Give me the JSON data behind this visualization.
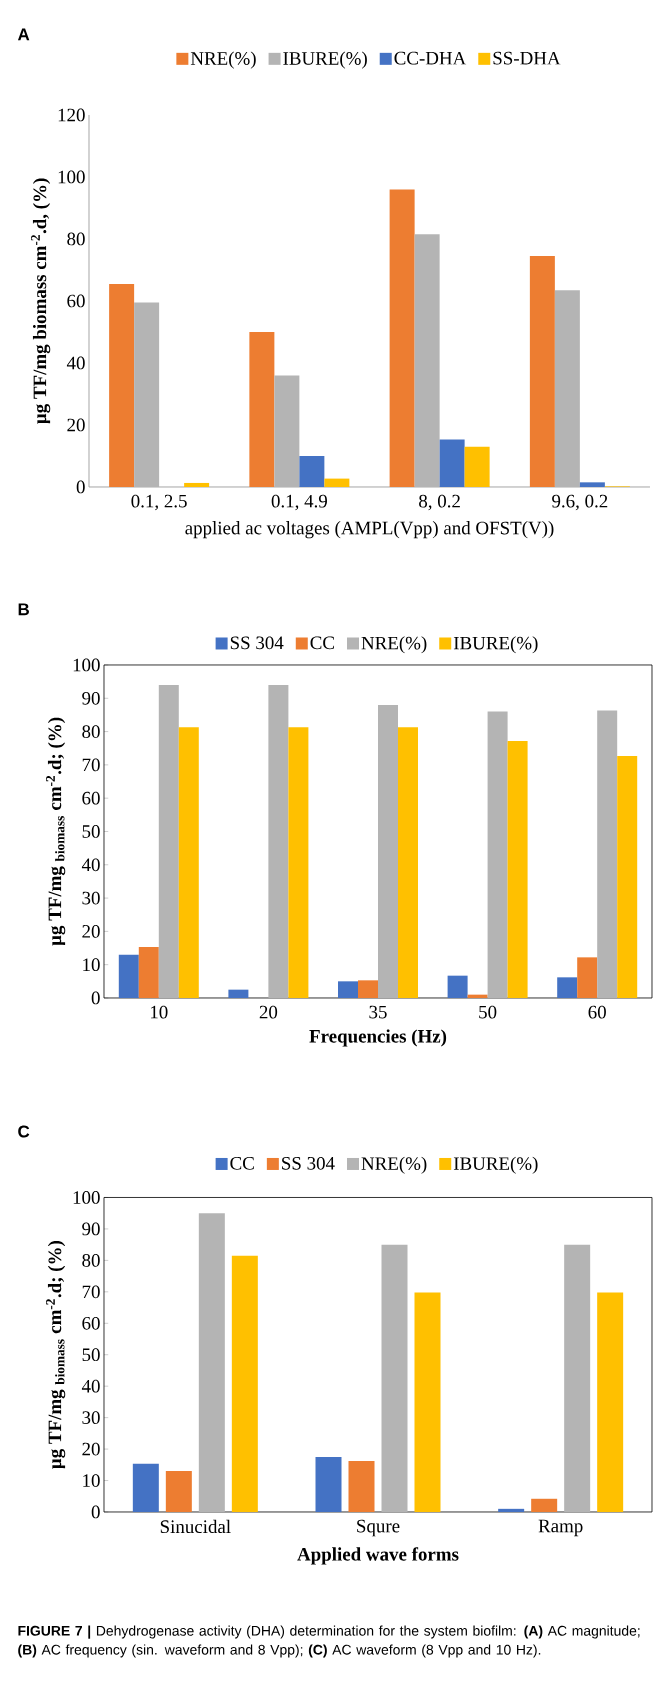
{
  "chart_data": [
    {
      "type": "bar",
      "title": "A",
      "xlabel": "applied ac voltages (AMPL(Vpp) and OFST(V))",
      "ylabel": "µg TF/mg biomass cm$^{-2}$.d, (%)",
      "categories": [
        "0.1, 2.5",
        "0.1, 4.9",
        "8, 0.2",
        "9.6, 0.2"
      ],
      "series": [
        {
          "name": "NRE(%)",
          "color": "#ed7d31",
          "values": [
            65.5,
            50,
            96,
            74.5
          ]
        },
        {
          "name": "IBURE(%)",
          "color": "#b4b4b4",
          "values": [
            59.5,
            36,
            81.5,
            63.5
          ]
        },
        {
          "name": "CC-DHA",
          "color": "#4472c4",
          "values": [
            0,
            10,
            15.3,
            1.5
          ]
        },
        {
          "name": "SS-DHA",
          "color": "#ffc000",
          "values": [
            1.3,
            2.7,
            13,
            0.2
          ]
        }
      ],
      "ylim": [
        0,
        120
      ],
      "yticks": [
        0,
        20,
        40,
        60,
        80,
        100,
        120
      ],
      "legend": "top"
    },
    {
      "type": "bar",
      "title": "B",
      "xlabel": "Frequencies (Hz)",
      "ylabel": "µg TF/mg $_{biomass}$ cm$^{-2}$.d; (%)",
      "categories": [
        "10",
        "20",
        "35",
        "50",
        "60"
      ],
      "series": [
        {
          "name": "SS 304",
          "color": "#4472c4",
          "values": [
            13,
            2.5,
            5,
            6.7,
            6.2
          ]
        },
        {
          "name": "CC",
          "color": "#ed7d31",
          "values": [
            15.3,
            0,
            5.3,
            1,
            12.2
          ]
        },
        {
          "name": "NRE(%)",
          "color": "#b4b4b4",
          "values": [
            94,
            94,
            88,
            86,
            86.3
          ]
        },
        {
          "name": "IBURE(%)",
          "color": "#ffc000",
          "values": [
            81.3,
            81.3,
            81.3,
            77.2,
            72.7
          ]
        }
      ],
      "ylim": [
        0,
        100
      ],
      "yticks": [
        0,
        10,
        20,
        30,
        40,
        50,
        60,
        70,
        80,
        90,
        100
      ],
      "legend": "top"
    },
    {
      "type": "bar",
      "title": "C",
      "xlabel": "Applied wave forms",
      "ylabel": "µg TF/mg $_{biomass}$ cm$^{-2}$.d; (%)",
      "categories": [
        "Sinucidal",
        "Squre",
        "Ramp"
      ],
      "series": [
        {
          "name": "CC",
          "color": "#4472c4",
          "values": [
            15.3,
            17.5,
            1
          ]
        },
        {
          "name": "SS 304",
          "color": "#ed7d31",
          "values": [
            13,
            16.2,
            4.2
          ]
        },
        {
          "name": "NRE(%)",
          "color": "#b4b4b4",
          "values": [
            95,
            85,
            85
          ]
        },
        {
          "name": "IBURE(%)",
          "color": "#ffc000",
          "values": [
            81.5,
            69.8,
            69.8
          ]
        }
      ],
      "ylim": [
        0,
        100
      ],
      "yticks": [
        0,
        10,
        20,
        30,
        40,
        50,
        60,
        70,
        80,
        90,
        100
      ],
      "legend": "top",
      "annotations": [
        "**FIGURE 7 |** Dehydrogenase activity (DHA) determination for the system biofilm: **(A)** AC magnitude; **(B)** AC frequency (sin. waveform and 8 Vpp); **(C)** AC waveform (8 Vpp and 10 Hz)."
      ]
    }
  ]
}
